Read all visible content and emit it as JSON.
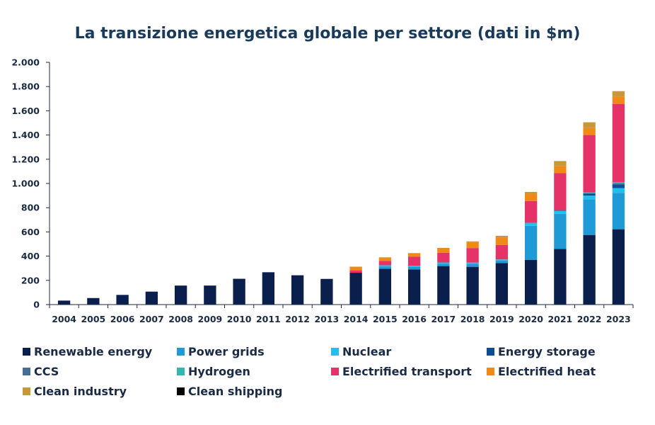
{
  "chart_data": {
    "type": "bar",
    "stacked": true,
    "title": "La transizione energetica globale per settore (dati in $m)",
    "xlabel": "",
    "ylabel": "",
    "ylim": [
      0,
      2000
    ],
    "yticks": [
      0,
      200,
      400,
      600,
      800,
      1000,
      1200,
      1400,
      1600,
      1800,
      2000
    ],
    "ytick_labels": [
      "0",
      "200",
      "400",
      "600",
      "800",
      "1.000",
      "1.200",
      "1.400",
      "1.600",
      "1.800",
      "2.000"
    ],
    "categories": [
      "2004",
      "2005",
      "2006",
      "2007",
      "2008",
      "2009",
      "2010",
      "2011",
      "2012",
      "2013",
      "2014",
      "2015",
      "2016",
      "2017",
      "2018",
      "2019",
      "2020",
      "2021",
      "2022",
      "2023"
    ],
    "legend_position": "bottom",
    "series": [
      {
        "name": "Renewable energy",
        "color": "#0b1f4d",
        "values": [
          33,
          54,
          80,
          107,
          157,
          157,
          213,
          267,
          242,
          212,
          263,
          295,
          290,
          318,
          312,
          343,
          370,
          460,
          575,
          622
        ]
      },
      {
        "name": "Power grids",
        "color": "#1e9ad6",
        "values": [
          0,
          0,
          0,
          0,
          0,
          0,
          0,
          0,
          0,
          0,
          0,
          20,
          20,
          20,
          25,
          20,
          280,
          290,
          295,
          300
        ]
      },
      {
        "name": "Nuclear",
        "color": "#20c0ec",
        "values": [
          0,
          0,
          0,
          0,
          0,
          0,
          0,
          0,
          0,
          0,
          0,
          10,
          10,
          10,
          10,
          10,
          25,
          25,
          30,
          40
        ]
      },
      {
        "name": "Energy storage",
        "color": "#0f4c96",
        "values": [
          0,
          0,
          0,
          0,
          0,
          0,
          0,
          0,
          0,
          0,
          0,
          0,
          0,
          0,
          0,
          0,
          0,
          5,
          15,
          30
        ]
      },
      {
        "name": "CCS",
        "color": "#4a6d96",
        "values": [
          0,
          0,
          0,
          0,
          0,
          0,
          0,
          0,
          0,
          0,
          0,
          0,
          0,
          0,
          0,
          0,
          0,
          0,
          5,
          10
        ]
      },
      {
        "name": "Hydrogen",
        "color": "#33b6b0",
        "values": [
          0,
          0,
          0,
          0,
          0,
          0,
          0,
          0,
          0,
          0,
          0,
          0,
          0,
          0,
          0,
          0,
          0,
          0,
          5,
          10
        ]
      },
      {
        "name": "Electrified transport",
        "color": "#e5336a",
        "values": [
          0,
          0,
          0,
          0,
          0,
          0,
          0,
          0,
          0,
          0,
          20,
          35,
          75,
          80,
          120,
          120,
          180,
          305,
          475,
          645
        ]
      },
      {
        "name": "Electrified heat",
        "color": "#ef8a17",
        "values": [
          0,
          0,
          0,
          0,
          0,
          0,
          0,
          0,
          0,
          0,
          30,
          30,
          30,
          40,
          50,
          60,
          60,
          60,
          60,
          60
        ]
      },
      {
        "name": "Clean industry",
        "color": "#c8973a",
        "values": [
          0,
          0,
          0,
          0,
          0,
          0,
          0,
          0,
          0,
          0,
          0,
          0,
          0,
          0,
          5,
          15,
          15,
          40,
          45,
          45
        ]
      },
      {
        "name": "Clean shipping",
        "color": "#000000",
        "values": [
          0,
          0,
          0,
          0,
          0,
          0,
          0,
          0,
          0,
          0,
          0,
          0,
          0,
          0,
          0,
          0,
          0,
          0,
          0,
          0
        ]
      }
    ]
  }
}
